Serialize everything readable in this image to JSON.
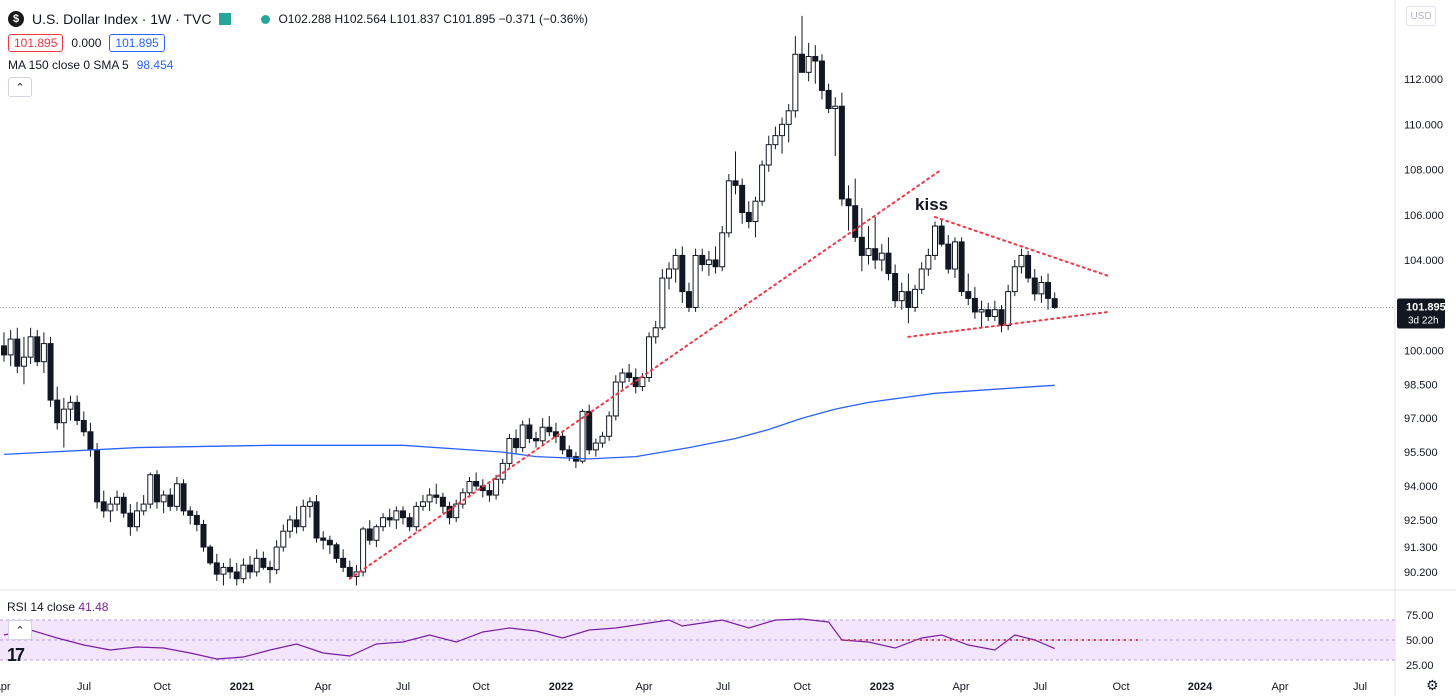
{
  "header": {
    "symbol_icon": "$",
    "title": "U.S. Dollar Index · 1W · TVC",
    "ohlc": "O102.288 H102.564 L101.837 C101.895 −0.371 (−0.36%)",
    "bid": "101.895",
    "spread": "0.000",
    "ask": "101.895",
    "ma_label": "MA 150 close 0 SMA 5",
    "ma_value": "98.454",
    "currency": "USD"
  },
  "price_label": {
    "value": "101.895",
    "countdown": "3d 22h"
  },
  "rsi": {
    "label": "RSI 14 close",
    "value": "41.48",
    "ticks": [
      "75.00",
      "50.00",
      "25.00"
    ]
  },
  "colors": {
    "up": "#131722",
    "down": "#131722",
    "ma": "#2962ff",
    "rsi": "#7b1fa2",
    "rsi_band": "#f3e5fb",
    "trend": "#f23645"
  },
  "chart_data": {
    "type": "candlestick",
    "title": "U.S. Dollar Index · 1W · TVC",
    "y_ticks": [
      "112.000",
      "110.000",
      "108.000",
      "106.000",
      "104.000",
      "100.000",
      "98.500",
      "97.000",
      "95.500",
      "94.000",
      "92.500",
      "91.300",
      "90.200"
    ],
    "x_ticks": [
      "Apr",
      "Jul",
      "Oct",
      "2021",
      "Apr",
      "Jul",
      "Oct",
      "2022",
      "Apr",
      "Jul",
      "Oct",
      "2023",
      "Apr",
      "Jul",
      "Oct",
      "2024",
      "Apr",
      "Jul"
    ],
    "annotation": "kiss",
    "ohlc_series": [
      [
        0,
        100.2,
        100.8,
        99.5,
        99.8
      ],
      [
        1,
        99.8,
        100.9,
        99.3,
        100.5
      ],
      [
        2,
        100.5,
        101.0,
        99.0,
        99.3
      ],
      [
        3,
        99.3,
        100.6,
        98.5,
        99.7
      ],
      [
        4,
        99.7,
        101.0,
        99.4,
        100.6
      ],
      [
        5,
        100.6,
        100.9,
        99.3,
        99.5
      ],
      [
        6,
        99.5,
        100.8,
        99.0,
        100.3
      ],
      [
        7,
        100.3,
        100.6,
        97.5,
        97.8
      ],
      [
        8,
        97.8,
        98.4,
        96.5,
        96.8
      ],
      [
        9,
        96.8,
        97.9,
        95.7,
        97.4
      ],
      [
        10,
        97.4,
        98.0,
        96.9,
        97.7
      ],
      [
        11,
        97.7,
        98.0,
        96.7,
        96.9
      ],
      [
        12,
        96.9,
        97.3,
        96.2,
        96.4
      ],
      [
        13,
        96.4,
        96.8,
        95.3,
        95.6
      ],
      [
        14,
        95.6,
        95.9,
        93.0,
        93.3
      ],
      [
        15,
        93.3,
        93.8,
        92.6,
        92.9
      ],
      [
        16,
        92.9,
        93.5,
        92.4,
        93.2
      ],
      [
        17,
        93.2,
        93.8,
        92.9,
        93.5
      ],
      [
        18,
        93.5,
        93.7,
        92.6,
        92.8
      ],
      [
        19,
        92.8,
        93.2,
        91.8,
        92.2
      ],
      [
        20,
        92.2,
        93.3,
        92.0,
        92.9
      ],
      [
        21,
        92.9,
        93.6,
        92.7,
        93.2
      ],
      [
        22,
        93.2,
        94.6,
        93.0,
        94.5
      ],
      [
        23,
        94.5,
        94.7,
        93.0,
        93.3
      ],
      [
        24,
        93.3,
        93.8,
        92.8,
        93.6
      ],
      [
        25,
        93.6,
        93.9,
        92.9,
        93.1
      ],
      [
        26,
        93.1,
        94.4,
        92.9,
        94.1
      ],
      [
        27,
        94.1,
        94.3,
        92.7,
        92.9
      ],
      [
        28,
        92.9,
        93.1,
        92.3,
        92.7
      ],
      [
        29,
        92.7,
        92.9,
        92.0,
        92.3
      ],
      [
        30,
        92.3,
        92.5,
        91.1,
        91.3
      ],
      [
        31,
        91.3,
        91.4,
        90.5,
        90.6
      ],
      [
        32,
        90.6,
        91.0,
        89.8,
        90.1
      ],
      [
        33,
        90.1,
        90.6,
        89.6,
        90.4
      ],
      [
        34,
        90.4,
        90.8,
        89.9,
        90.2
      ],
      [
        35,
        90.2,
        90.6,
        89.6,
        89.9
      ],
      [
        36,
        89.9,
        90.8,
        89.7,
        90.5
      ],
      [
        37,
        90.5,
        90.9,
        89.9,
        90.2
      ],
      [
        38,
        90.2,
        91.2,
        90.0,
        90.8
      ],
      [
        39,
        90.8,
        91.1,
        90.3,
        90.4
      ],
      [
        40,
        90.4,
        90.7,
        89.7,
        90.3
      ],
      [
        41,
        90.3,
        91.6,
        90.1,
        91.3
      ],
      [
        42,
        91.3,
        92.3,
        91.1,
        92.0
      ],
      [
        43,
        92.0,
        92.7,
        91.7,
        92.5
      ],
      [
        44,
        92.5,
        93.1,
        91.9,
        92.2
      ],
      [
        45,
        92.2,
        93.4,
        92.0,
        93.1
      ],
      [
        46,
        93.1,
        93.5,
        92.6,
        93.3
      ],
      [
        47,
        93.3,
        93.6,
        91.5,
        91.7
      ],
      [
        48,
        91.7,
        92.0,
        91.2,
        91.6
      ],
      [
        49,
        91.6,
        91.8,
        91.0,
        91.4
      ],
      [
        50,
        91.4,
        91.5,
        90.6,
        90.8
      ],
      [
        51,
        90.8,
        91.2,
        90.2,
        90.4
      ],
      [
        52,
        90.4,
        90.7,
        89.9,
        90.0
      ],
      [
        53,
        90.0,
        90.5,
        89.6,
        90.2
      ],
      [
        54,
        90.2,
        92.2,
        90.0,
        92.1
      ],
      [
        55,
        92.1,
        92.5,
        91.4,
        91.6
      ],
      [
        56,
        91.6,
        92.3,
        91.3,
        92.2
      ],
      [
        57,
        92.2,
        92.8,
        92.0,
        92.6
      ],
      [
        58,
        92.6,
        93.0,
        92.2,
        92.5
      ],
      [
        59,
        92.5,
        93.1,
        92.1,
        92.9
      ],
      [
        60,
        92.9,
        93.1,
        92.3,
        92.6
      ],
      [
        61,
        92.6,
        92.8,
        92.0,
        92.2
      ],
      [
        62,
        92.2,
        93.3,
        92.0,
        93.1
      ],
      [
        63,
        93.1,
        93.6,
        92.9,
        93.3
      ],
      [
        64,
        93.3,
        93.9,
        92.9,
        93.6
      ],
      [
        65,
        93.6,
        94.1,
        93.2,
        93.5
      ],
      [
        66,
        93.5,
        93.7,
        92.8,
        93.1
      ],
      [
        67,
        93.1,
        93.3,
        92.3,
        92.6
      ],
      [
        68,
        92.6,
        93.4,
        92.4,
        93.2
      ],
      [
        69,
        93.2,
        93.9,
        93.0,
        93.7
      ],
      [
        70,
        93.7,
        94.4,
        93.5,
        94.2
      ],
      [
        71,
        94.2,
        94.6,
        93.8,
        94.0
      ],
      [
        72,
        94.0,
        94.3,
        93.5,
        93.8
      ],
      [
        73,
        93.8,
        94.1,
        93.3,
        93.6
      ],
      [
        74,
        93.6,
        94.5,
        93.4,
        94.3
      ],
      [
        75,
        94.3,
        95.2,
        94.1,
        95.0
      ],
      [
        76,
        95.0,
        96.3,
        94.8,
        96.1
      ],
      [
        77,
        96.1,
        96.5,
        95.4,
        95.7
      ],
      [
        78,
        95.7,
        96.9,
        95.5,
        96.7
      ],
      [
        79,
        96.7,
        97.0,
        95.9,
        96.1
      ],
      [
        80,
        96.1,
        96.4,
        95.7,
        96.0
      ],
      [
        81,
        96.0,
        97.0,
        95.8,
        96.6
      ],
      [
        82,
        96.6,
        97.1,
        96.2,
        96.4
      ],
      [
        83,
        96.4,
        96.8,
        95.9,
        96.2
      ],
      [
        84,
        96.2,
        96.4,
        95.4,
        95.6
      ],
      [
        85,
        95.6,
        95.8,
        95.1,
        95.3
      ],
      [
        86,
        95.3,
        95.5,
        94.8,
        95.1
      ],
      [
        87,
        95.1,
        97.4,
        95.0,
        97.3
      ],
      [
        88,
        97.3,
        97.6,
        95.4,
        95.6
      ],
      [
        89,
        95.6,
        96.1,
        95.3,
        95.9
      ],
      [
        90,
        95.9,
        96.4,
        95.7,
        96.2
      ],
      [
        91,
        96.2,
        97.3,
        96.0,
        97.1
      ],
      [
        92,
        97.1,
        98.9,
        96.9,
        98.6
      ],
      [
        93,
        98.6,
        99.2,
        98.3,
        99.0
      ],
      [
        94,
        99.0,
        99.4,
        98.6,
        98.8
      ],
      [
        95,
        98.8,
        99.2,
        98.1,
        98.4
      ],
      [
        96,
        98.4,
        99.0,
        98.2,
        98.8
      ],
      [
        97,
        98.8,
        100.8,
        98.6,
        100.6
      ],
      [
        98,
        100.6,
        101.3,
        100.3,
        101.0
      ],
      [
        99,
        101.0,
        103.6,
        100.9,
        103.2
      ],
      [
        100,
        103.2,
        103.9,
        102.7,
        103.6
      ],
      [
        101,
        103.6,
        104.5,
        103.0,
        104.2
      ],
      [
        102,
        104.2,
        104.6,
        102.1,
        102.6
      ],
      [
        103,
        102.6,
        103.0,
        101.7,
        101.9
      ],
      [
        104,
        101.9,
        104.5,
        101.7,
        104.2
      ],
      [
        105,
        104.2,
        104.5,
        103.5,
        103.8
      ],
      [
        106,
        103.8,
        104.4,
        103.3,
        104.0
      ],
      [
        107,
        104.0,
        104.6,
        103.4,
        103.7
      ],
      [
        108,
        103.7,
        105.5,
        103.5,
        105.2
      ],
      [
        109,
        105.2,
        107.8,
        105.0,
        107.5
      ],
      [
        110,
        107.5,
        108.8,
        106.9,
        107.3
      ],
      [
        111,
        107.3,
        107.6,
        105.6,
        106.1
      ],
      [
        112,
        106.1,
        106.6,
        105.4,
        105.7
      ],
      [
        113,
        105.7,
        106.8,
        105.0,
        106.6
      ],
      [
        114,
        106.6,
        108.4,
        106.4,
        108.2
      ],
      [
        115,
        108.2,
        109.5,
        107.9,
        109.1
      ],
      [
        116,
        109.1,
        109.9,
        108.9,
        109.5
      ],
      [
        117,
        109.5,
        110.3,
        108.7,
        110.0
      ],
      [
        118,
        110.0,
        110.9,
        109.2,
        110.6
      ],
      [
        119,
        110.6,
        113.9,
        110.3,
        113.1
      ],
      [
        120,
        113.1,
        114.8,
        112.6,
        112.3
      ],
      [
        121,
        112.3,
        113.6,
        111.9,
        113.0
      ],
      [
        122,
        113.0,
        113.5,
        111.8,
        112.8
      ],
      [
        123,
        112.8,
        113.1,
        111.1,
        111.5
      ],
      [
        124,
        111.5,
        111.8,
        110.5,
        110.7
      ],
      [
        125,
        110.7,
        111.2,
        108.6,
        110.8
      ],
      [
        126,
        110.8,
        111.4,
        106.4,
        106.7
      ],
      [
        127,
        106.7,
        107.3,
        105.3,
        106.4
      ],
      [
        128,
        106.4,
        107.6,
        104.8,
        105.0
      ],
      [
        129,
        105.0,
        106.3,
        103.5,
        104.2
      ],
      [
        130,
        104.2,
        105.5,
        103.8,
        104.5
      ],
      [
        131,
        104.5,
        105.9,
        103.6,
        104.0
      ],
      [
        132,
        104.0,
        104.7,
        103.5,
        104.3
      ],
      [
        133,
        104.3,
        105.0,
        103.1,
        103.4
      ],
      [
        134,
        103.4,
        103.8,
        101.9,
        102.2
      ],
      [
        135,
        102.2,
        103.0,
        101.8,
        102.6
      ],
      [
        136,
        102.6,
        103.4,
        101.2,
        101.9
      ],
      [
        137,
        101.9,
        102.9,
        101.7,
        102.7
      ],
      [
        138,
        102.7,
        103.9,
        102.5,
        103.6
      ],
      [
        139,
        103.6,
        104.5,
        103.3,
        104.2
      ],
      [
        140,
        104.2,
        105.7,
        104.0,
        105.5
      ],
      [
        141,
        105.5,
        105.8,
        104.6,
        104.7
      ],
      [
        142,
        104.7,
        105.1,
        103.4,
        103.6
      ],
      [
        143,
        103.6,
        105.0,
        103.2,
        104.8
      ],
      [
        144,
        104.8,
        105.0,
        102.4,
        102.6
      ],
      [
        145,
        102.6,
        103.4,
        102.0,
        102.3
      ],
      [
        146,
        102.3,
        102.8,
        101.4,
        101.7
      ],
      [
        147,
        101.7,
        102.2,
        101.0,
        101.8
      ],
      [
        148,
        101.8,
        102.1,
        101.3,
        101.5
      ],
      [
        149,
        101.5,
        102.2,
        101.3,
        101.8
      ],
      [
        150,
        101.8,
        102.0,
        100.8,
        101.1
      ],
      [
        151,
        101.1,
        102.9,
        100.9,
        102.6
      ],
      [
        152,
        102.6,
        104.0,
        102.4,
        103.7
      ],
      [
        153,
        103.7,
        104.5,
        103.4,
        104.2
      ],
      [
        154,
        104.2,
        104.4,
        103.0,
        103.2
      ],
      [
        155,
        103.2,
        103.6,
        102.2,
        102.5
      ],
      [
        156,
        102.5,
        103.3,
        102.1,
        103.0
      ],
      [
        157,
        103.0,
        103.4,
        101.8,
        102.3
      ],
      [
        158,
        102.288,
        102.564,
        101.837,
        101.895
      ]
    ],
    "ma_150": [
      [
        0,
        95.4
      ],
      [
        20,
        95.7
      ],
      [
        40,
        95.8
      ],
      [
        60,
        95.8
      ],
      [
        75,
        95.5
      ],
      [
        80,
        95.3
      ],
      [
        88,
        95.2
      ],
      [
        95,
        95.3
      ],
      [
        103,
        95.7
      ],
      [
        110,
        96.1
      ],
      [
        115,
        96.5
      ],
      [
        120,
        97.0
      ],
      [
        125,
        97.4
      ],
      [
        130,
        97.7
      ],
      [
        135,
        97.9
      ],
      [
        140,
        98.1
      ],
      [
        145,
        98.2
      ],
      [
        150,
        98.3
      ],
      [
        155,
        98.4
      ],
      [
        158,
        98.454
      ]
    ],
    "rsi_14": [
      [
        0,
        55
      ],
      [
        4,
        60
      ],
      [
        8,
        52
      ],
      [
        12,
        45
      ],
      [
        16,
        40
      ],
      [
        20,
        43
      ],
      [
        24,
        42
      ],
      [
        28,
        37
      ],
      [
        32,
        31
      ],
      [
        36,
        33
      ],
      [
        40,
        40
      ],
      [
        44,
        46
      ],
      [
        48,
        37
      ],
      [
        52,
        34
      ],
      [
        56,
        46
      ],
      [
        60,
        48
      ],
      [
        64,
        55
      ],
      [
        68,
        48
      ],
      [
        72,
        58
      ],
      [
        76,
        62
      ],
      [
        80,
        59
      ],
      [
        84,
        52
      ],
      [
        88,
        60
      ],
      [
        92,
        62
      ],
      [
        96,
        66
      ],
      [
        100,
        70
      ],
      [
        102,
        64
      ],
      [
        104,
        66
      ],
      [
        108,
        70
      ],
      [
        112,
        62
      ],
      [
        116,
        70
      ],
      [
        120,
        71
      ],
      [
        124,
        68
      ],
      [
        126,
        50
      ],
      [
        130,
        48
      ],
      [
        134,
        42
      ],
      [
        138,
        52
      ],
      [
        141,
        55
      ],
      [
        145,
        45
      ],
      [
        149,
        40
      ],
      [
        152,
        55
      ],
      [
        155,
        50
      ],
      [
        158,
        41.48
      ]
    ],
    "trendlines": [
      {
        "from": [
          52,
          89.9
        ],
        "to": [
          141,
          108.0
        ]
      },
      {
        "from": [
          140,
          105.9
        ],
        "to": [
          166,
          103.3
        ]
      },
      {
        "from": [
          136,
          100.6
        ],
        "to": [
          166,
          101.7
        ]
      },
      {
        "rsi": true,
        "from": [
          126,
          50
        ],
        "to": [
          171,
          50
        ]
      }
    ]
  }
}
